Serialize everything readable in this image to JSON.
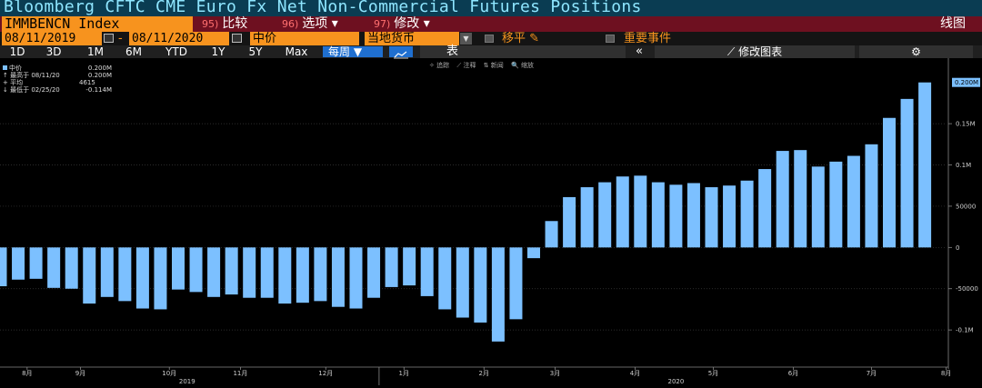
{
  "window": {
    "title": "Bloomberg CFTC CME Euro Fx Net Non-Commercial Futures Positions"
  },
  "toolbar": {
    "ticker": "IMMBENCN Index",
    "compare": {
      "num": "95)",
      "label": "比较"
    },
    "options": {
      "num": "96)",
      "label": "选项 ▾"
    },
    "edit": {
      "num": "97)",
      "label": "修改 ▾"
    },
    "chart_kind": "线图"
  },
  "controls": {
    "start_date": "08/11/2019",
    "date_sep": "-",
    "end_date": "08/11/2020",
    "field": "中价",
    "currency": "当地货币",
    "move_avg": "移平",
    "key_events": "重要事件"
  },
  "periods": [
    "1D",
    "3D",
    "1M",
    "6M",
    "YTD",
    "1Y",
    "5Y",
    "Max"
  ],
  "frequency": "每周 ▼",
  "table_label": "表",
  "collapse_label": "«",
  "edit_chart_label": "修改图表",
  "settings_label": "⚙",
  "tools": [
    "✧ 追踪",
    "⟋ 注释",
    "⇅ 新闻",
    "🔍 缩放"
  ],
  "legend": {
    "series_name": "中价",
    "series_value": "0.200M",
    "high_label": "↑ 最高于 08/11/20",
    "high_value": "0.200M",
    "avg_label": "+ 平均",
    "avg_value": "4615",
    "low_label": "↓ 最低于 02/25/20",
    "low_value": "-0.114M"
  },
  "colors": {
    "bar": "#7cc0ff",
    "last_value_tag": "#7cc0ff",
    "title_bar": "#0a3c52",
    "accent": "#f7931e",
    "menu_bar": "#6e1020"
  },
  "chart_data": {
    "type": "bar",
    "title": "CFTC CME Euro Fx Net Non-Commercial Futures Positions",
    "series_name": "IMMBENCN Index",
    "unit": "contracts",
    "ylim": [
      -145000,
      225000
    ],
    "yticks": [
      {
        "value": 150000,
        "label": "0.15M"
      },
      {
        "value": 100000,
        "label": "0.1M"
      },
      {
        "value": 50000,
        "label": "50000"
      },
      {
        "value": 0,
        "label": "0"
      },
      {
        "value": -50000,
        "label": "-50000"
      },
      {
        "value": -100000,
        "label": "-0.1M"
      }
    ],
    "last_value_label": "0.200M",
    "values": [
      -47000,
      -39000,
      -38000,
      -49000,
      -50000,
      -68000,
      -60000,
      -65000,
      -74000,
      -75000,
      -51000,
      -54000,
      -60000,
      -57000,
      -61000,
      -61000,
      -68000,
      -67000,
      -65000,
      -72000,
      -74000,
      -61000,
      -48000,
      -46000,
      -59000,
      -75000,
      -85000,
      -91000,
      -114000,
      -87000,
      -13000,
      32000,
      61000,
      73000,
      79000,
      86000,
      87000,
      79000,
      76000,
      78000,
      73000,
      75000,
      81000,
      95000,
      117000,
      118000,
      98000,
      104000,
      111000,
      125000,
      157000,
      180000,
      200000
    ],
    "x_month_labels": [
      {
        "label": "8月",
        "bar_index": 1.5
      },
      {
        "label": "9月",
        "bar_index": 4.5
      },
      {
        "label": "10月",
        "bar_index": 9.5
      },
      {
        "label": "11月",
        "bar_index": 13.5
      },
      {
        "label": "12月",
        "bar_index": 18.3
      },
      {
        "label": "1月",
        "bar_index": 22.7
      },
      {
        "label": "2月",
        "bar_index": 27.2
      },
      {
        "label": "3月",
        "bar_index": 31.2
      },
      {
        "label": "4月",
        "bar_index": 35.7
      },
      {
        "label": "5月",
        "bar_index": 40.1
      },
      {
        "label": "6月",
        "bar_index": 44.6
      },
      {
        "label": "7月",
        "bar_index": 49.0
      },
      {
        "label": "8月",
        "bar_index": 53.2
      }
    ],
    "x_year_labels": [
      {
        "label": "2019",
        "bar_index": 10.5
      },
      {
        "label": "2020",
        "bar_index": 38.0
      }
    ],
    "xlabel": "",
    "ylabel": ""
  }
}
